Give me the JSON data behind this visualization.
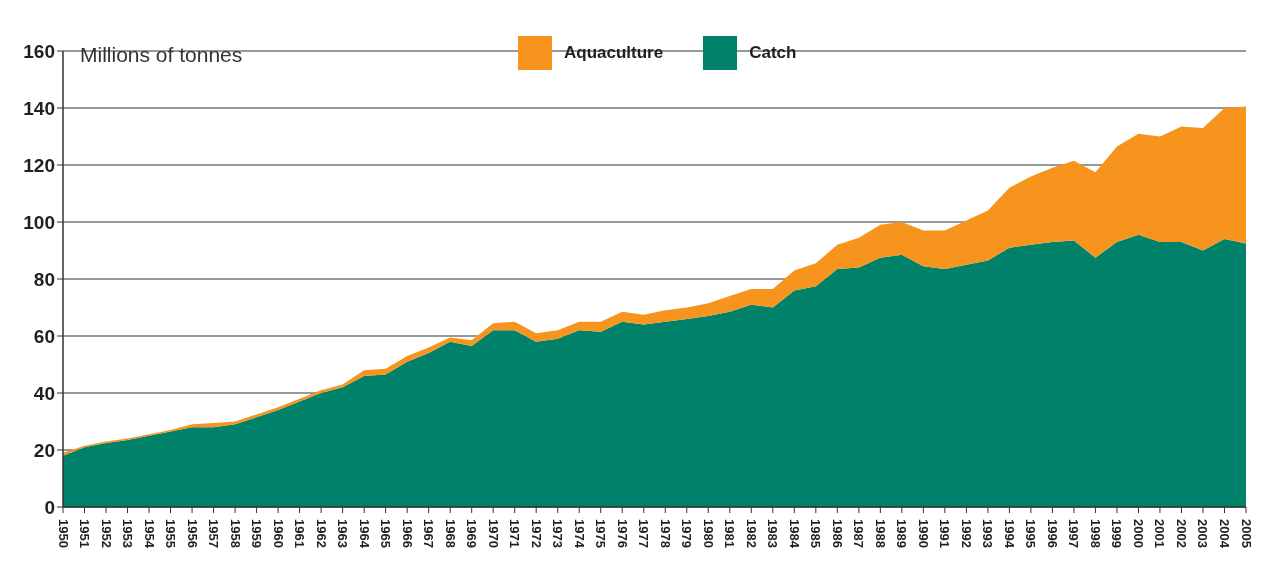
{
  "chart_data": {
    "type": "area",
    "ylabel": "Millions of tonnes",
    "stacked": true,
    "categories": [
      "1950",
      "1951",
      "1952",
      "1953",
      "1954",
      "1955",
      "1956",
      "1957",
      "1958",
      "1959",
      "1960",
      "1961",
      "1962",
      "1963",
      "1964",
      "1965",
      "1966",
      "1967",
      "1968",
      "1969",
      "1970",
      "1971",
      "1972",
      "1973",
      "1974",
      "1975",
      "1976",
      "1977",
      "1978",
      "1979",
      "1980",
      "1981",
      "1982",
      "1983",
      "1984",
      "1985",
      "1986",
      "1987",
      "1988",
      "1989",
      "1990",
      "1991",
      "1992",
      "1993",
      "1994",
      "1995",
      "1996",
      "1997",
      "1998",
      "1999",
      "2000",
      "2001",
      "2002",
      "2003",
      "2004",
      "2005"
    ],
    "series": [
      {
        "name": "Catch",
        "color": "#00826a",
        "values": [
          18,
          21,
          22.5,
          23.5,
          25,
          26.5,
          28,
          28,
          29,
          31.5,
          34,
          37,
          40,
          42,
          46,
          46.5,
          51,
          54,
          58,
          56.5,
          62,
          62,
          58,
          59,
          62,
          61.5,
          65,
          64,
          65,
          66,
          67,
          68.5,
          71,
          70,
          76,
          77.5,
          83.5,
          84,
          87.5,
          88.5,
          84.5,
          83.5,
          85,
          86.5,
          91,
          92,
          93,
          93.5,
          87.5,
          93,
          95.5,
          93,
          93,
          90,
          94,
          92.5
        ]
      },
      {
        "name": "Aquaculture",
        "color": "#f7941e",
        "values": [
          1,
          0.5,
          0.5,
          0.5,
          0.5,
          0.5,
          1,
          1.5,
          1,
          1,
          1,
          1,
          1,
          1,
          2,
          2,
          2,
          2,
          1.5,
          2,
          2.5,
          3,
          3,
          3,
          3,
          3.5,
          3.5,
          3.5,
          4,
          4,
          4.5,
          5.5,
          5.5,
          6.5,
          7,
          8,
          8.5,
          10.5,
          11.5,
          11.5,
          12.5,
          13.5,
          15.5,
          17.5,
          21,
          24,
          26,
          28,
          30,
          33.5,
          35.5,
          37,
          40.5,
          43,
          46,
          48
        ]
      }
    ],
    "ylim": [
      0,
      160
    ],
    "yticks": [
      0,
      20,
      40,
      60,
      80,
      100,
      120,
      140,
      160
    ],
    "grid": "y",
    "legend": "top"
  }
}
